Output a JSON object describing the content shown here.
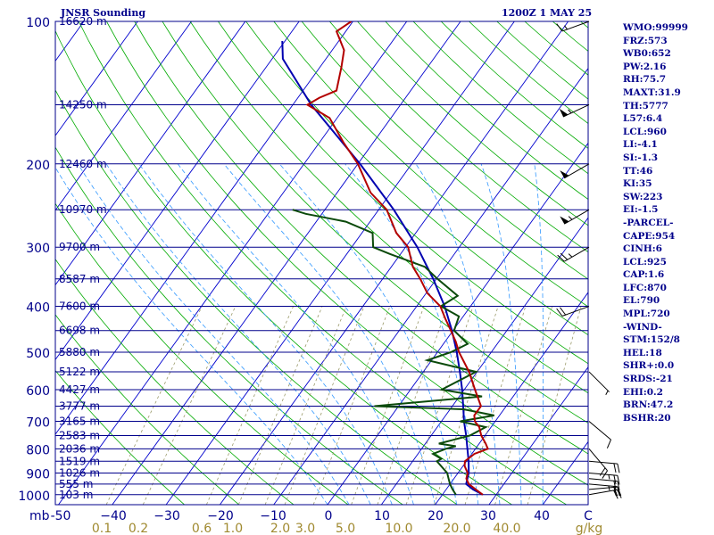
{
  "header": {
    "title": "JNSR Sounding",
    "timestamp": "1200Z  1 MAY 25"
  },
  "indices": [
    "WMO:99999",
    "FRZ:573",
    "WB0:652",
    "PW:2.16",
    "RH:75.7",
    "MAXT:31.9",
    "TH:5777",
    "L57:6.4",
    "LCL:960",
    "LI:-4.1",
    "SI:-1.3",
    "TT:46",
    "KI:35",
    "SW:223",
    "EI:-1.5",
    "-PARCEL-",
    "CAPE:954",
    "CINH:6",
    "LCL:925",
    "CAP:1.6",
    "LFC:870",
    "EL:790",
    "MPL:720",
    "-WIND-",
    "STM:152/8",
    "HEL:18",
    "SHR+:0.0",
    "SRDS:-21",
    "EHI:0.2",
    "BRN:47.2",
    "BSHR:20"
  ],
  "colors": {
    "isobar": "#00008b",
    "isotherm": "#0000cd",
    "dry_adiabat": "#00aa00",
    "moist_adiabat": "#3399ff",
    "mixing_ratio": "#9a9a6a",
    "temperature": "#b30000",
    "dewpoint": "#0b4a0b",
    "parcel": "#0000b0",
    "axis_text": "#00008b",
    "mixing_text": "#a08a30"
  },
  "chart_data": {
    "type": "line",
    "plot_kind": "skew-t log-p",
    "y_scale": "log",
    "pressure_ticks": [
      100,
      200,
      300,
      400,
      500,
      600,
      700,
      800,
      900,
      1000
    ],
    "pressure_unit": "mb",
    "temperature_ticks": [
      -50,
      -40,
      -30,
      -20,
      -10,
      0,
      10,
      20,
      30,
      40
    ],
    "temperature_tick_labels": [
      "-50",
      "−40",
      "−30",
      "−20",
      "−10",
      "0",
      "10",
      "20",
      "30",
      "40",
      "C"
    ],
    "mixing_ratio_ticks": [
      0.1,
      0.2,
      0.6,
      1.0,
      2.0,
      3.0,
      5.0,
      10.0,
      20.0,
      40.0
    ],
    "mixing_ratio_tick_labels": [
      "0.1",
      "0.2",
      "0.6",
      "1.0",
      "2.0",
      "3.0",
      "5.0",
      "10.0",
      "20.0",
      "40.0",
      "g/kg"
    ],
    "height_levels": [
      {
        "p": 100,
        "label": "16620 m"
      },
      {
        "p": 150,
        "label": "14250 m"
      },
      {
        "p": 200,
        "label": "12460 m"
      },
      {
        "p": 250,
        "label": "10970 m"
      },
      {
        "p": 300,
        "label": "9700 m"
      },
      {
        "p": 350,
        "label": "8587 m"
      },
      {
        "p": 400,
        "label": "7600 m"
      },
      {
        "p": 450,
        "label": "6698 m"
      },
      {
        "p": 500,
        "label": "5880 m"
      },
      {
        "p": 550,
        "label": "5122 m"
      },
      {
        "p": 600,
        "label": "4427 m"
      },
      {
        "p": 650,
        "label": "3777 m"
      },
      {
        "p": 700,
        "label": "3165 m"
      },
      {
        "p": 750,
        "label": "2583 m"
      },
      {
        "p": 800,
        "label": "2036 m"
      },
      {
        "p": 850,
        "label": "1519 m"
      },
      {
        "p": 900,
        "label": "1026 m"
      },
      {
        "p": 950,
        "label": "555 m"
      },
      {
        "p": 1000,
        "label": "103 m"
      }
    ],
    "series": [
      {
        "name": "Temperature",
        "p": [
          1000,
          975,
          950,
          925,
          900,
          870,
          850,
          820,
          800,
          780,
          750,
          720,
          700,
          680,
          650,
          600,
          550,
          500,
          475,
          450,
          425,
          400,
          375,
          350,
          330,
          300,
          280,
          250,
          230,
          200,
          180,
          160,
          150,
          145,
          140,
          125,
          115,
          105,
          100
        ],
        "t": [
          27.5,
          25.5,
          23.5,
          22.3,
          21.8,
          20.3,
          19.7,
          20.5,
          22.3,
          21.2,
          19.3,
          17.8,
          16.2,
          15.3,
          15.3,
          12.0,
          8.5,
          4.0,
          2.0,
          -0.4,
          -3.0,
          -5.6,
          -9.8,
          -13.0,
          -16.0,
          -19.5,
          -23.6,
          -28.5,
          -33.8,
          -40.0,
          -45.6,
          -51.4,
          -57.3,
          -56.0,
          -53.8,
          -56.0,
          -57.8,
          -61.7,
          -60.3
        ]
      },
      {
        "name": "Dewpoint",
        "p": [
          1000,
          975,
          950,
          925,
          900,
          850,
          840,
          820,
          800,
          790,
          780,
          750,
          720,
          700,
          680,
          660,
          650,
          620,
          600,
          550,
          520,
          500,
          480,
          450,
          420,
          400,
          380,
          350,
          330,
          310,
          300,
          280,
          265,
          255,
          250
        ],
        "td": [
          22.5,
          21.2,
          20.0,
          19.0,
          18.0,
          14.5,
          15.0,
          12.8,
          14.5,
          16.0,
          12.5,
          17.2,
          19.0,
          13.5,
          19.0,
          12.5,
          -4.5,
          14.2,
          5.8,
          9.8,
          -0.8,
          2.5,
          4.5,
          0.2,
          -0.8,
          -5.5,
          -3.8,
          -9.8,
          -13.8,
          -22.0,
          -26.0,
          -28.0,
          -34.5,
          -43.0,
          -46.0
        ]
      },
      {
        "name": "Parcel",
        "p": [
          1000,
          975,
          950,
          925,
          900,
          850,
          800,
          750,
          700,
          650,
          600,
          550,
          500,
          450,
          400,
          350,
          300,
          250,
          200,
          150,
          120,
          110
        ],
        "t": [
          27.5,
          25.0,
          23.0,
          22.5,
          22.0,
          20.4,
          18.5,
          16.5,
          14.2,
          12.0,
          9.6,
          6.8,
          3.6,
          -0.2,
          -4.8,
          -10.6,
          -17.8,
          -27.2,
          -39.6,
          -56.6,
          -68.0,
          -70.5
        ]
      }
    ],
    "wind_barbs": [
      {
        "p": 1000,
        "dir": 80,
        "kt": 20
      },
      {
        "p": 975,
        "dir": 85,
        "kt": 20
      },
      {
        "p": 950,
        "dir": 95,
        "kt": 25
      },
      {
        "p": 925,
        "dir": 95,
        "kt": 20
      },
      {
        "p": 900,
        "dir": 95,
        "kt": 25
      },
      {
        "p": 850,
        "dir": 95,
        "kt": 20
      },
      {
        "p": 800,
        "dir": 140,
        "kt": 20
      },
      {
        "p": 700,
        "dir": 130,
        "kt": 10
      },
      {
        "p": 550,
        "dir": 135,
        "kt": 5
      },
      {
        "p": 400,
        "dir": 250,
        "kt": 20
      },
      {
        "p": 300,
        "dir": 240,
        "kt": 25
      },
      {
        "p": 250,
        "dir": 240,
        "kt": 55
      },
      {
        "p": 200,
        "dir": 240,
        "kt": 50
      },
      {
        "p": 150,
        "dir": 245,
        "kt": 55
      },
      {
        "p": 100,
        "dir": 250,
        "kt": 15
      }
    ]
  }
}
